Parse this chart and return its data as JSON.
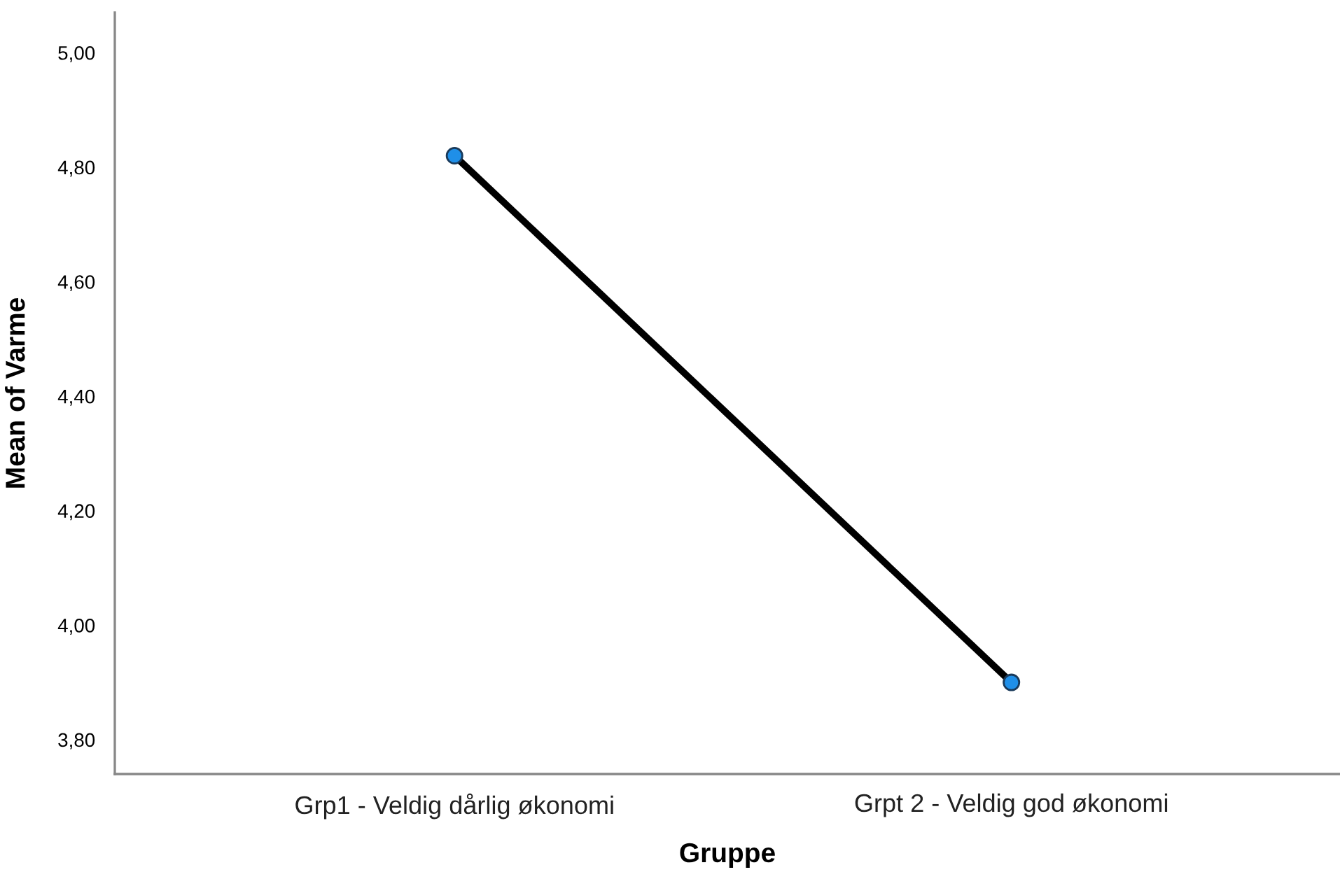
{
  "chart_data": {
    "type": "line",
    "xlabel": "Gruppe",
    "ylabel": "Mean of Varme",
    "categories": [
      "Grp1 - Veldig dårlig økonomi",
      "Grpt 2 - Veldig god økonomi"
    ],
    "series": [
      {
        "color": "#1f8fe8",
        "values": [
          4.82,
          3.9
        ]
      }
    ],
    "ylim": [
      3.74,
      5.07
    ],
    "yticks": [
      {
        "value": 3.8,
        "label": "3,80"
      },
      {
        "value": 4.0,
        "label": "4,00"
      },
      {
        "value": 4.2,
        "label": "4,20"
      },
      {
        "value": 4.4,
        "label": "4,40"
      },
      {
        "value": 4.6,
        "label": "4,60"
      },
      {
        "value": 4.8,
        "label": "4,80"
      },
      {
        "value": 5.0,
        "label": "5,00"
      }
    ],
    "grid": false,
    "legend": false,
    "marker": "circle",
    "line_style": "solid"
  }
}
